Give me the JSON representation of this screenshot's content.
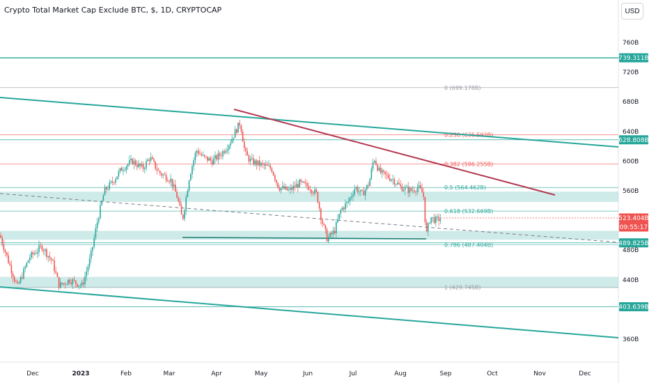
{
  "title": "Crypto Total Market Cap Exclude BTC, $, 1D, CRYPTOCAP",
  "currency_button": "USD",
  "chart_data": {
    "type": "candlestick",
    "title": "Crypto Total Market Cap Exclude BTC, $, 1D, CRYPTOCAP",
    "y_unit": "B",
    "y_ticks": [
      "760B",
      "720B",
      "680B",
      "640B",
      "600B",
      "560B",
      "480B",
      "440B",
      "360B"
    ],
    "x_ticks": [
      "Dec",
      "2023",
      "Feb",
      "Mar",
      "Apr",
      "May",
      "Jun",
      "Jul",
      "Aug",
      "Sep",
      "Oct",
      "Nov",
      "Dec"
    ],
    "ylim": [
      345,
      800
    ],
    "price_tags": [
      {
        "label": "739.311B",
        "value": 739.311,
        "color": "#26a69a"
      },
      {
        "label": "628.808B",
        "value": 628.808,
        "color": "#26a69a"
      },
      {
        "label": "523.404B",
        "value": 523.404,
        "color": "#ef5350"
      },
      {
        "label": "09:55:17",
        "value": null,
        "color": "#ef5350"
      },
      {
        "label": "489.825B",
        "value": 489.825,
        "color": "#26a69a"
      },
      {
        "label": "403.639B",
        "value": 403.639,
        "color": "#26a69a"
      }
    ],
    "fib_levels": [
      {
        "label": "0 (699.178B)",
        "value": 699.178,
        "color": "#9598a1"
      },
      {
        "label": "0.236 (635.592B)",
        "value": 635.592,
        "color": "#ef5350"
      },
      {
        "label": "0.382 (596.255B)",
        "value": 596.255,
        "color": "#ef5350"
      },
      {
        "label": "0.5 (564.462B)",
        "value": 564.462,
        "color": "#26a69a"
      },
      {
        "label": "0.618 (532.669B)",
        "value": 532.669,
        "color": "#26a69a"
      },
      {
        "label": "0.786 (487.404B)",
        "value": 487.404,
        "color": "#26a69a"
      },
      {
        "label": "1 (429.745B)",
        "value": 429.745,
        "color": "#9598a1"
      }
    ],
    "support_zones": [
      {
        "from": 545,
        "to": 559
      },
      {
        "from": 494,
        "to": 506
      },
      {
        "from": 429,
        "to": 444
      }
    ],
    "price_series": [
      [
        0,
        500
      ],
      [
        12,
        465
      ],
      [
        25,
        430
      ],
      [
        42,
        470
      ],
      [
        60,
        485
      ],
      [
        75,
        465
      ],
      [
        85,
        432
      ],
      [
        100,
        440
      ],
      [
        118,
        432
      ],
      [
        130,
        470
      ],
      [
        140,
        520
      ],
      [
        150,
        560
      ],
      [
        160,
        570
      ],
      [
        175,
        590
      ],
      [
        190,
        600
      ],
      [
        205,
        590
      ],
      [
        215,
        605
      ],
      [
        228,
        585
      ],
      [
        245,
        575
      ],
      [
        255,
        550
      ],
      [
        262,
        520
      ],
      [
        272,
        580
      ],
      [
        282,
        615
      ],
      [
        292,
        605
      ],
      [
        305,
        600
      ],
      [
        318,
        610
      ],
      [
        330,
        625
      ],
      [
        338,
        640
      ],
      [
        345,
        652
      ],
      [
        352,
        610
      ],
      [
        360,
        600
      ],
      [
        375,
        595
      ],
      [
        390,
        590
      ],
      [
        400,
        565
      ],
      [
        415,
        560
      ],
      [
        430,
        570
      ],
      [
        445,
        565
      ],
      [
        455,
        555
      ],
      [
        462,
        520
      ],
      [
        470,
        495
      ],
      [
        480,
        505
      ],
      [
        490,
        535
      ],
      [
        500,
        545
      ],
      [
        510,
        565
      ],
      [
        520,
        555
      ],
      [
        530,
        570
      ],
      [
        537,
        605
      ],
      [
        545,
        585
      ],
      [
        555,
        580
      ],
      [
        565,
        575
      ],
      [
        575,
        565
      ],
      [
        590,
        560
      ],
      [
        600,
        565
      ],
      [
        608,
        555
      ],
      [
        612,
        500
      ],
      [
        618,
        525
      ],
      [
        625,
        520
      ],
      [
        633,
        523
      ]
    ]
  }
}
